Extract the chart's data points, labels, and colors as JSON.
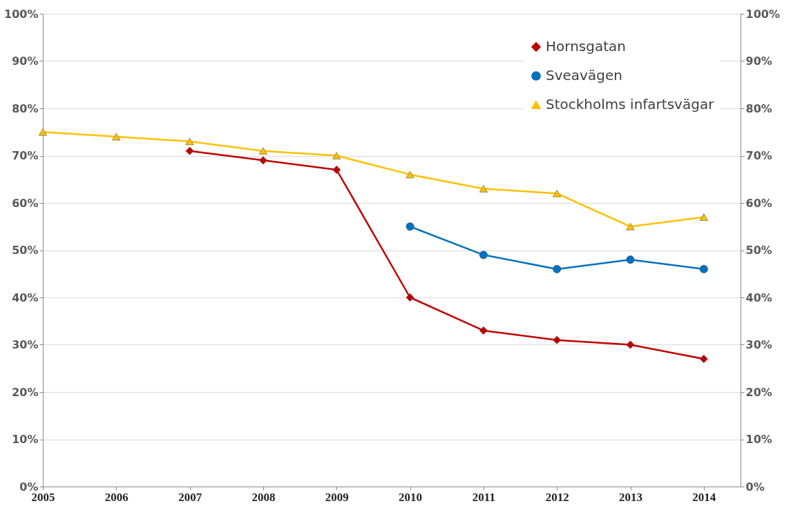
{
  "chart_data": {
    "type": "line",
    "xlim": [
      2005,
      2014.5
    ],
    "xticks": [
      2005,
      2006,
      2007,
      2008,
      2009,
      2010,
      2011,
      2012,
      2013,
      2014
    ],
    "ylim": [
      0,
      100
    ],
    "yticks": [
      {
        "value": 0,
        "label": "0%"
      },
      {
        "value": 10,
        "label": "10%"
      },
      {
        "value": 20,
        "label": "20%"
      },
      {
        "value": 30,
        "label": "30%"
      },
      {
        "value": 40,
        "label": "40%"
      },
      {
        "value": 50,
        "label": "50%"
      },
      {
        "value": 60,
        "label": "60%"
      },
      {
        "value": 70,
        "label": "70%"
      },
      {
        "value": 80,
        "label": "80%"
      },
      {
        "value": 90,
        "label": "90%"
      },
      {
        "value": 100,
        "label": "100%"
      }
    ],
    "y2lim": [
      0,
      100
    ],
    "y2ticks": [
      {
        "value": 0,
        "label": "0%"
      },
      {
        "value": 10,
        "label": "10%"
      },
      {
        "value": 20,
        "label": "20%"
      },
      {
        "value": 30,
        "label": "30%"
      },
      {
        "value": 40,
        "label": "40%"
      },
      {
        "value": 50,
        "label": "50%"
      },
      {
        "value": 60,
        "label": "60%"
      },
      {
        "value": 70,
        "label": "70%"
      },
      {
        "value": 80,
        "label": "80%"
      },
      {
        "value": 90,
        "label": "90%"
      },
      {
        "value": 100,
        "label": "100%"
      }
    ],
    "grid": "y",
    "legend": "top right",
    "line_style": "solid",
    "series": [
      {
        "name": "Hornsgatan",
        "color": "#c00000",
        "marker": "diamond",
        "x": [
          2007,
          2008,
          2009,
          2010,
          2011,
          2012,
          2013,
          2014
        ],
        "values": [
          71,
          69,
          67,
          40,
          33,
          31,
          30,
          27
        ]
      },
      {
        "name": "Sveavägen",
        "color": "#0070c0",
        "marker": "circle",
        "x": [
          2010,
          2011,
          2012,
          2013,
          2014
        ],
        "values": [
          55,
          49,
          46,
          48,
          46
        ]
      },
      {
        "name": "Stockholms infartsvägar",
        "color": "#ffc000",
        "marker": "triangle",
        "x": [
          2005,
          2006,
          2007,
          2008,
          2009,
          2010,
          2011,
          2012,
          2013,
          2014
        ],
        "values": [
          75,
          74,
          73,
          71,
          70,
          66,
          63,
          62,
          55,
          57
        ]
      }
    ]
  }
}
